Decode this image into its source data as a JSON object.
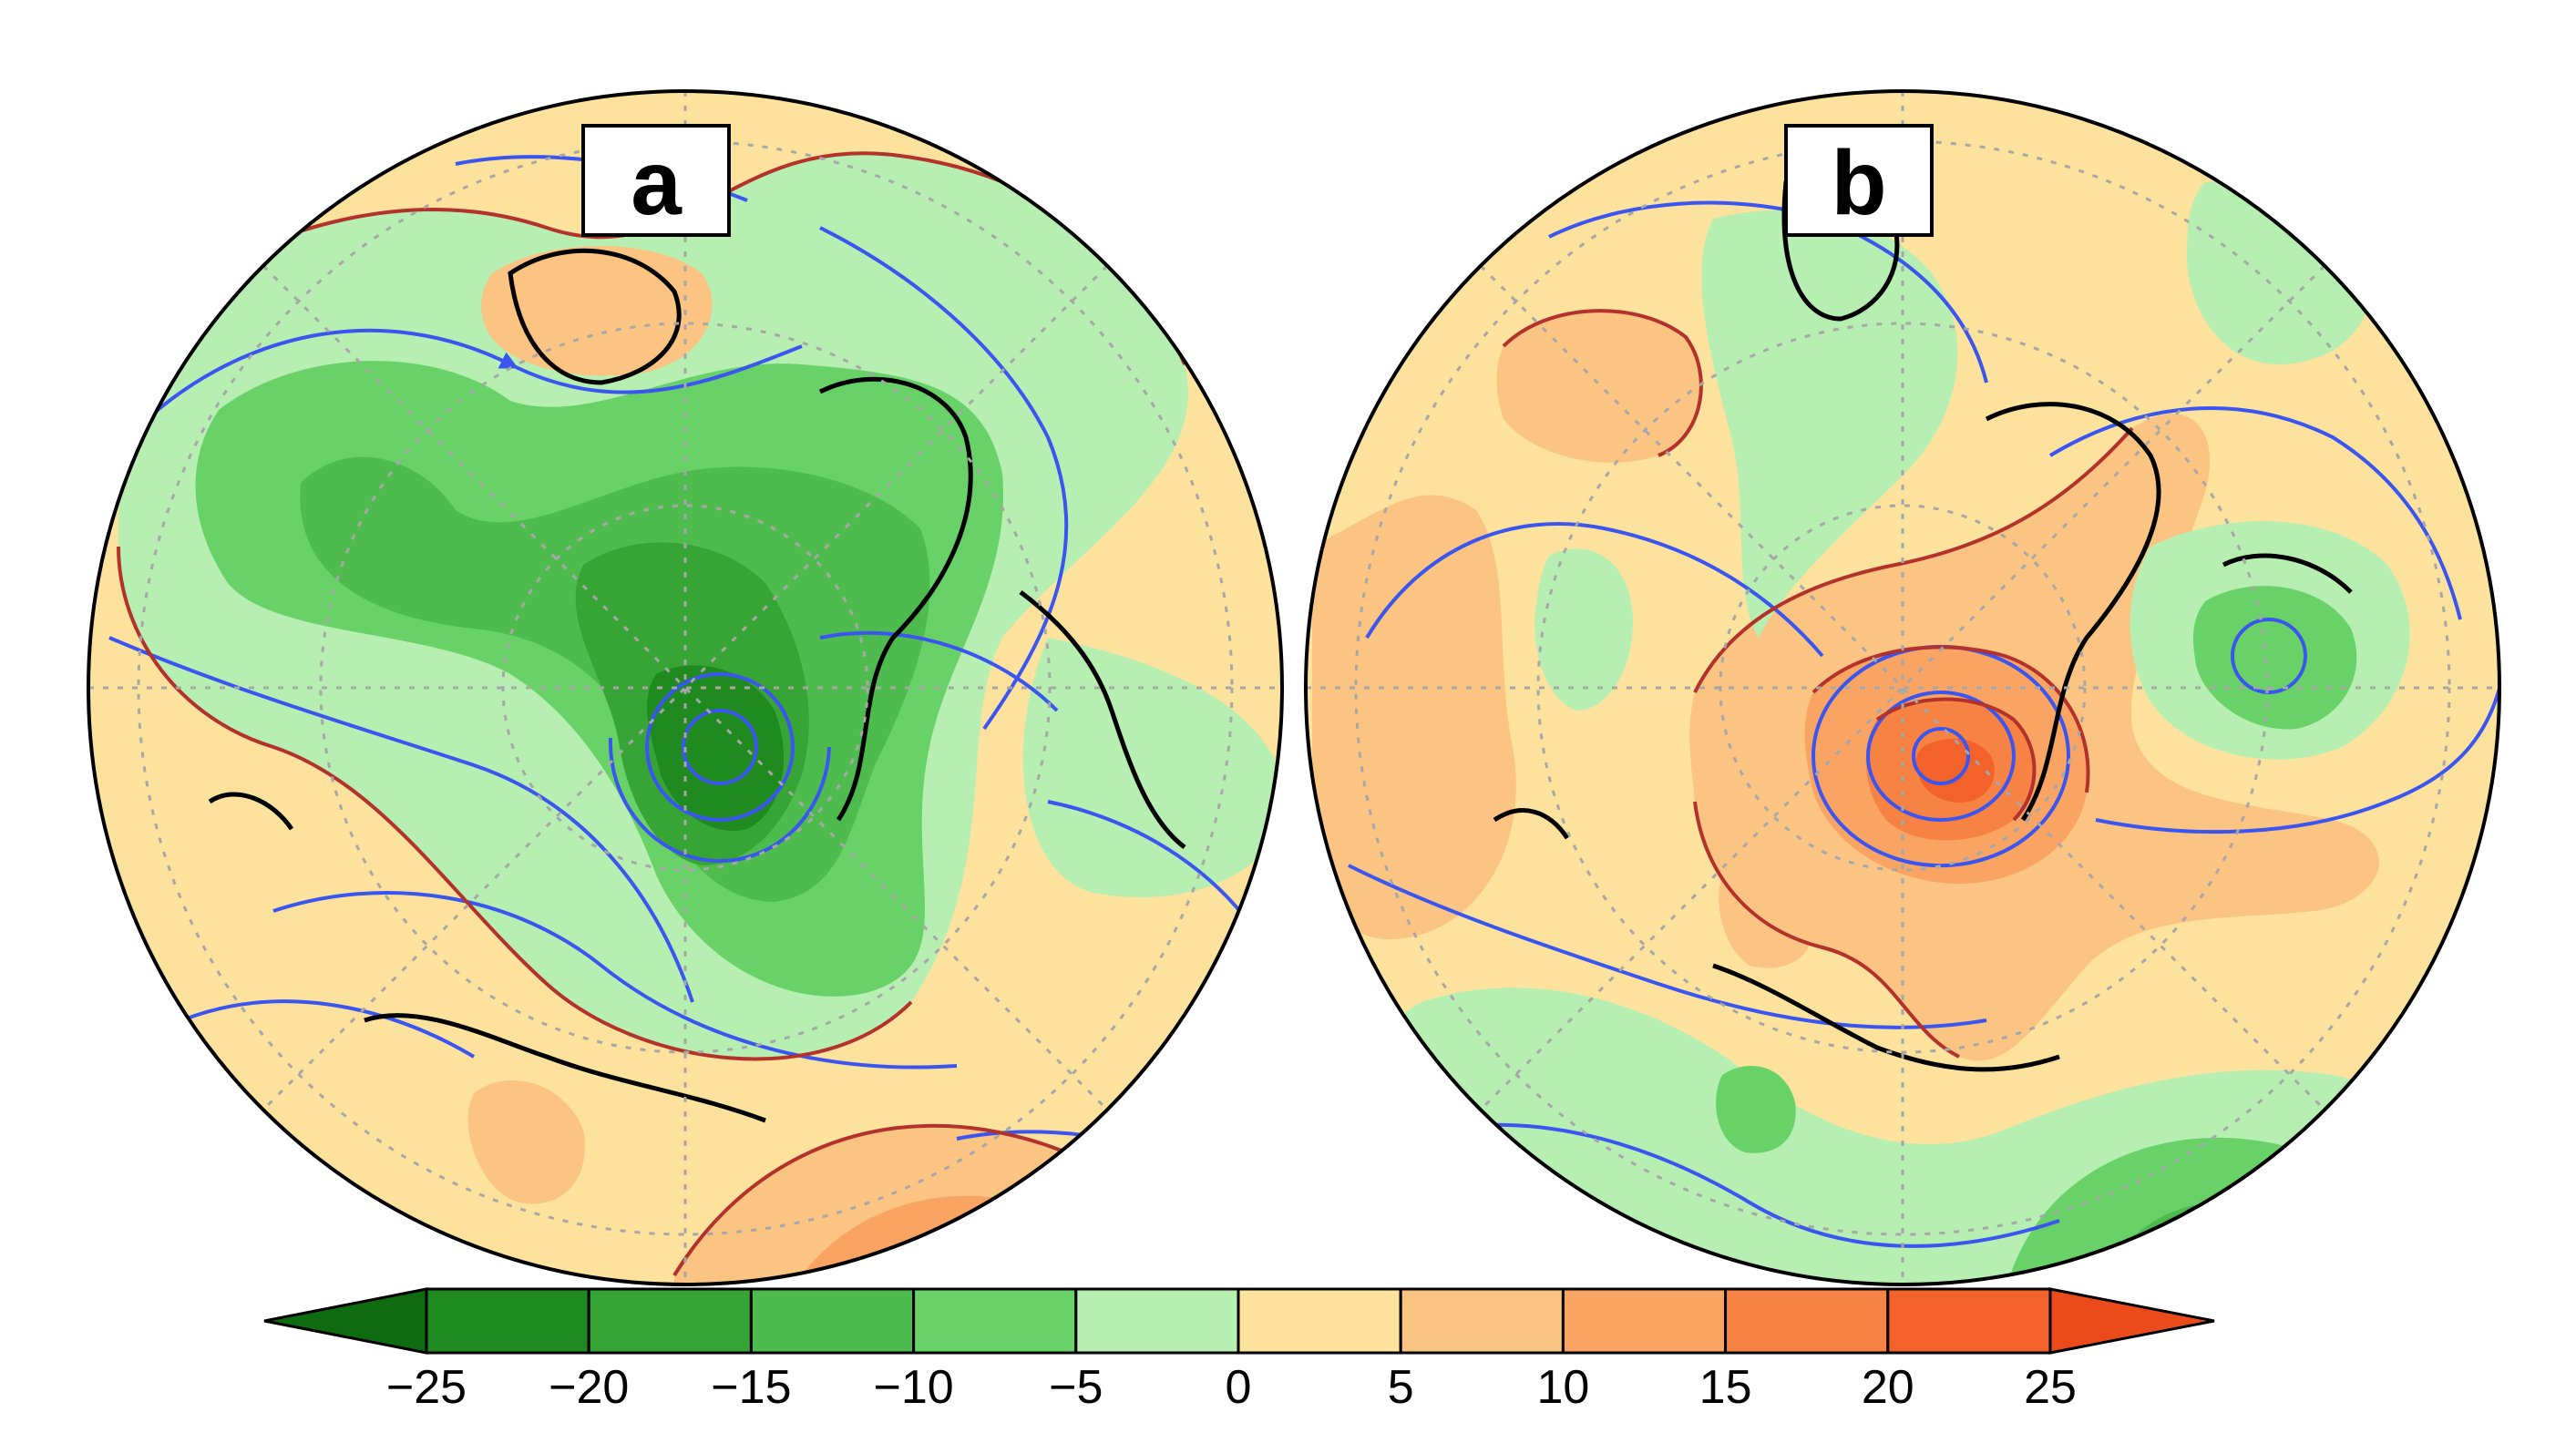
{
  "panels": [
    {
      "label": "a",
      "anomaly": "negative",
      "colors": {
        "ocean": "#fde29e",
        "land_outline": "#000000",
        "stream": "#3a55f0",
        "contour": "#b3322b",
        "grid": "#a7a7a7"
      }
    },
    {
      "label": "b",
      "anomaly": "positive",
      "colors": {
        "ocean": "#fde29e",
        "land_outline": "#000000",
        "stream": "#3a55f0",
        "contour": "#b3322b",
        "grid": "#a7a7a7"
      }
    }
  ],
  "colorbar": {
    "ticks": [
      "−25",
      "−20",
      "−15",
      "−10",
      "−5",
      "0",
      "5",
      "10",
      "15",
      "20",
      "25"
    ],
    "bin_colors": [
      "#0e6b10",
      "#1f8a1f",
      "#36a536",
      "#4ebb4e",
      "#68d168",
      "#b7eeb2",
      "#fde29e",
      "#fcc482",
      "#f9a463",
      "#f68244",
      "#f3622a",
      "#eb4a1b"
    ],
    "orientation": "horizontal",
    "extend": "both"
  }
}
